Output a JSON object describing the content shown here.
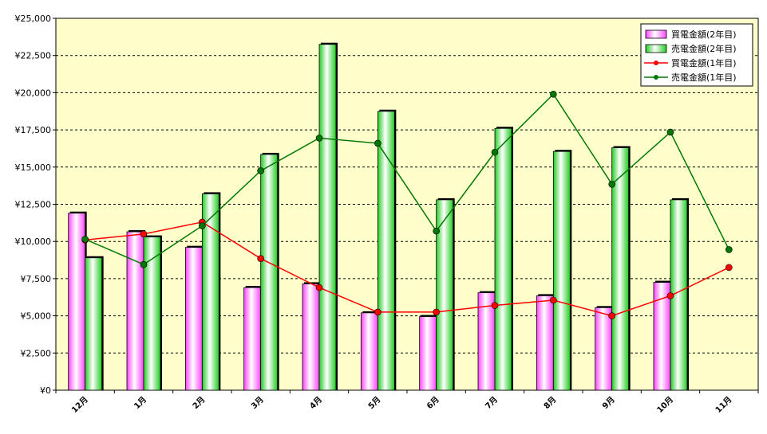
{
  "chart_data": {
    "type": "bar",
    "title": "",
    "xlabel": "",
    "ylabel": "",
    "ylim": [
      0,
      25000
    ],
    "y_ticks": [
      0,
      2500,
      5000,
      7500,
      10000,
      12500,
      15000,
      17500,
      20000,
      22500,
      25000
    ],
    "y_tick_labels": [
      "¥0",
      "¥2,500",
      "¥5,000",
      "¥7,500",
      "¥10,000",
      "¥12,500",
      "¥15,000",
      "¥17,500",
      "¥20,000",
      "¥22,500",
      "¥25,000"
    ],
    "categories": [
      "12月",
      "1月",
      "2月",
      "3月",
      "4月",
      "5月",
      "6月",
      "7月",
      "8月",
      "9月",
      "10月",
      "11月"
    ],
    "grid": "horizontal dashed",
    "legend_position": "top-right",
    "background_color": "#FFFFCC",
    "series": [
      {
        "name": "買電金額(2年目)",
        "type": "bar",
        "color": "#FF66FF",
        "values": [
          11900,
          10650,
          9600,
          6900,
          7150,
          5200,
          4950,
          6550,
          6350,
          5550,
          7250,
          null
        ]
      },
      {
        "name": "売電金額(2年目)",
        "type": "bar",
        "color": "#33CC33",
        "values": [
          8900,
          10300,
          13200,
          15850,
          23250,
          18750,
          12800,
          17600,
          16050,
          16300,
          12800,
          null
        ]
      },
      {
        "name": "買電金額(1年目)",
        "type": "line",
        "color": "#FF0000",
        "values": [
          10100,
          10500,
          11300,
          8850,
          6900,
          5250,
          5250,
          5700,
          6050,
          5000,
          6350,
          8250
        ]
      },
      {
        "name": "売電金額(1年目)",
        "type": "line",
        "color": "#007700",
        "values": [
          10150,
          8450,
          11050,
          14750,
          16950,
          16600,
          10700,
          16000,
          19900,
          13850,
          17350,
          9450
        ]
      }
    ]
  }
}
